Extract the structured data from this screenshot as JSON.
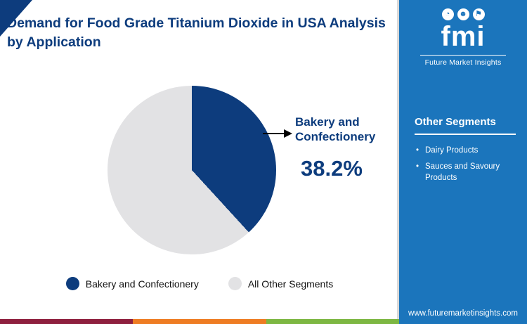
{
  "title": "Demand for Food Grade Titanium Dioxide in USA Analysis by Application",
  "chart_data": {
    "type": "pie",
    "title": "Demand for Food Grade Titanium Dioxide in USA Analysis by Application",
    "slices": [
      {
        "label": "Bakery and Confectionery",
        "value": 38.2,
        "color": "#0d3c7d"
      },
      {
        "label": "All Other Segments",
        "value": 61.8,
        "color": "#e2e2e4"
      }
    ],
    "start_angle_deg": 0,
    "callout": {
      "label": "Bakery and Confectionery",
      "value_text": "38.2%"
    },
    "legend_position": "bottom"
  },
  "sidebar": {
    "logo_text": "fmi",
    "brand_name": "Future Market Insights",
    "logo_icons": [
      {
        "name": "pie-chart",
        "glyph": "◔"
      },
      {
        "name": "person",
        "glyph": "☻"
      },
      {
        "name": "flag",
        "glyph": "⚑"
      }
    ],
    "other_segments_title": "Other Segments",
    "items": [
      "Dairy Products",
      "Sauces and Savoury Products"
    ],
    "url": "www.futuremarketinsights.com",
    "background": "#1b75bc"
  },
  "footer_stripe": {
    "colors": [
      "#8e1f3e",
      "#ee7c23",
      "#7db742"
    ]
  },
  "colors": {
    "accent_navy": "#0d3c7d",
    "light_gray_slice": "#e2e2e4"
  }
}
